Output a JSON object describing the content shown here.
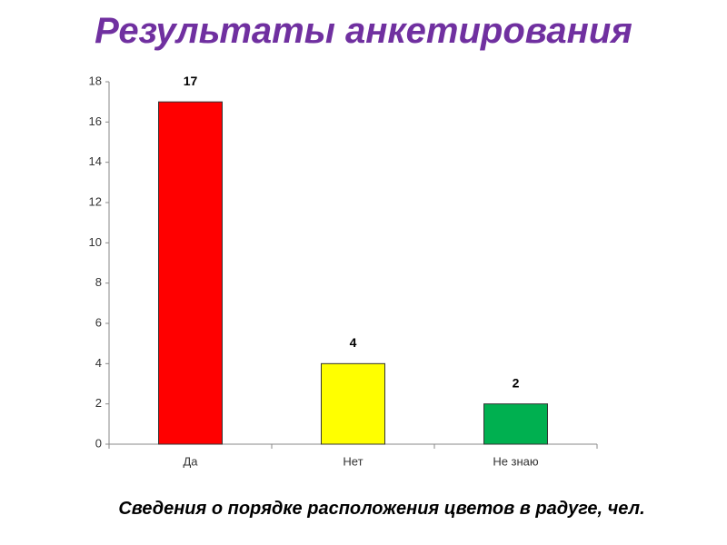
{
  "chart_data": {
    "type": "bar",
    "title": "Результаты анкетирования",
    "subtitle": "Сведения о порядке расположения цветов в радуге, чел.",
    "categories": [
      "Да",
      "Нет",
      "Не знаю"
    ],
    "values": [
      17,
      4,
      2
    ],
    "colors": [
      "#ff0000",
      "#ffff00",
      "#00b050"
    ],
    "ylim": [
      0,
      18
    ],
    "yticks": [
      0,
      2,
      4,
      6,
      8,
      10,
      12,
      14,
      16,
      18
    ],
    "grid": false
  }
}
